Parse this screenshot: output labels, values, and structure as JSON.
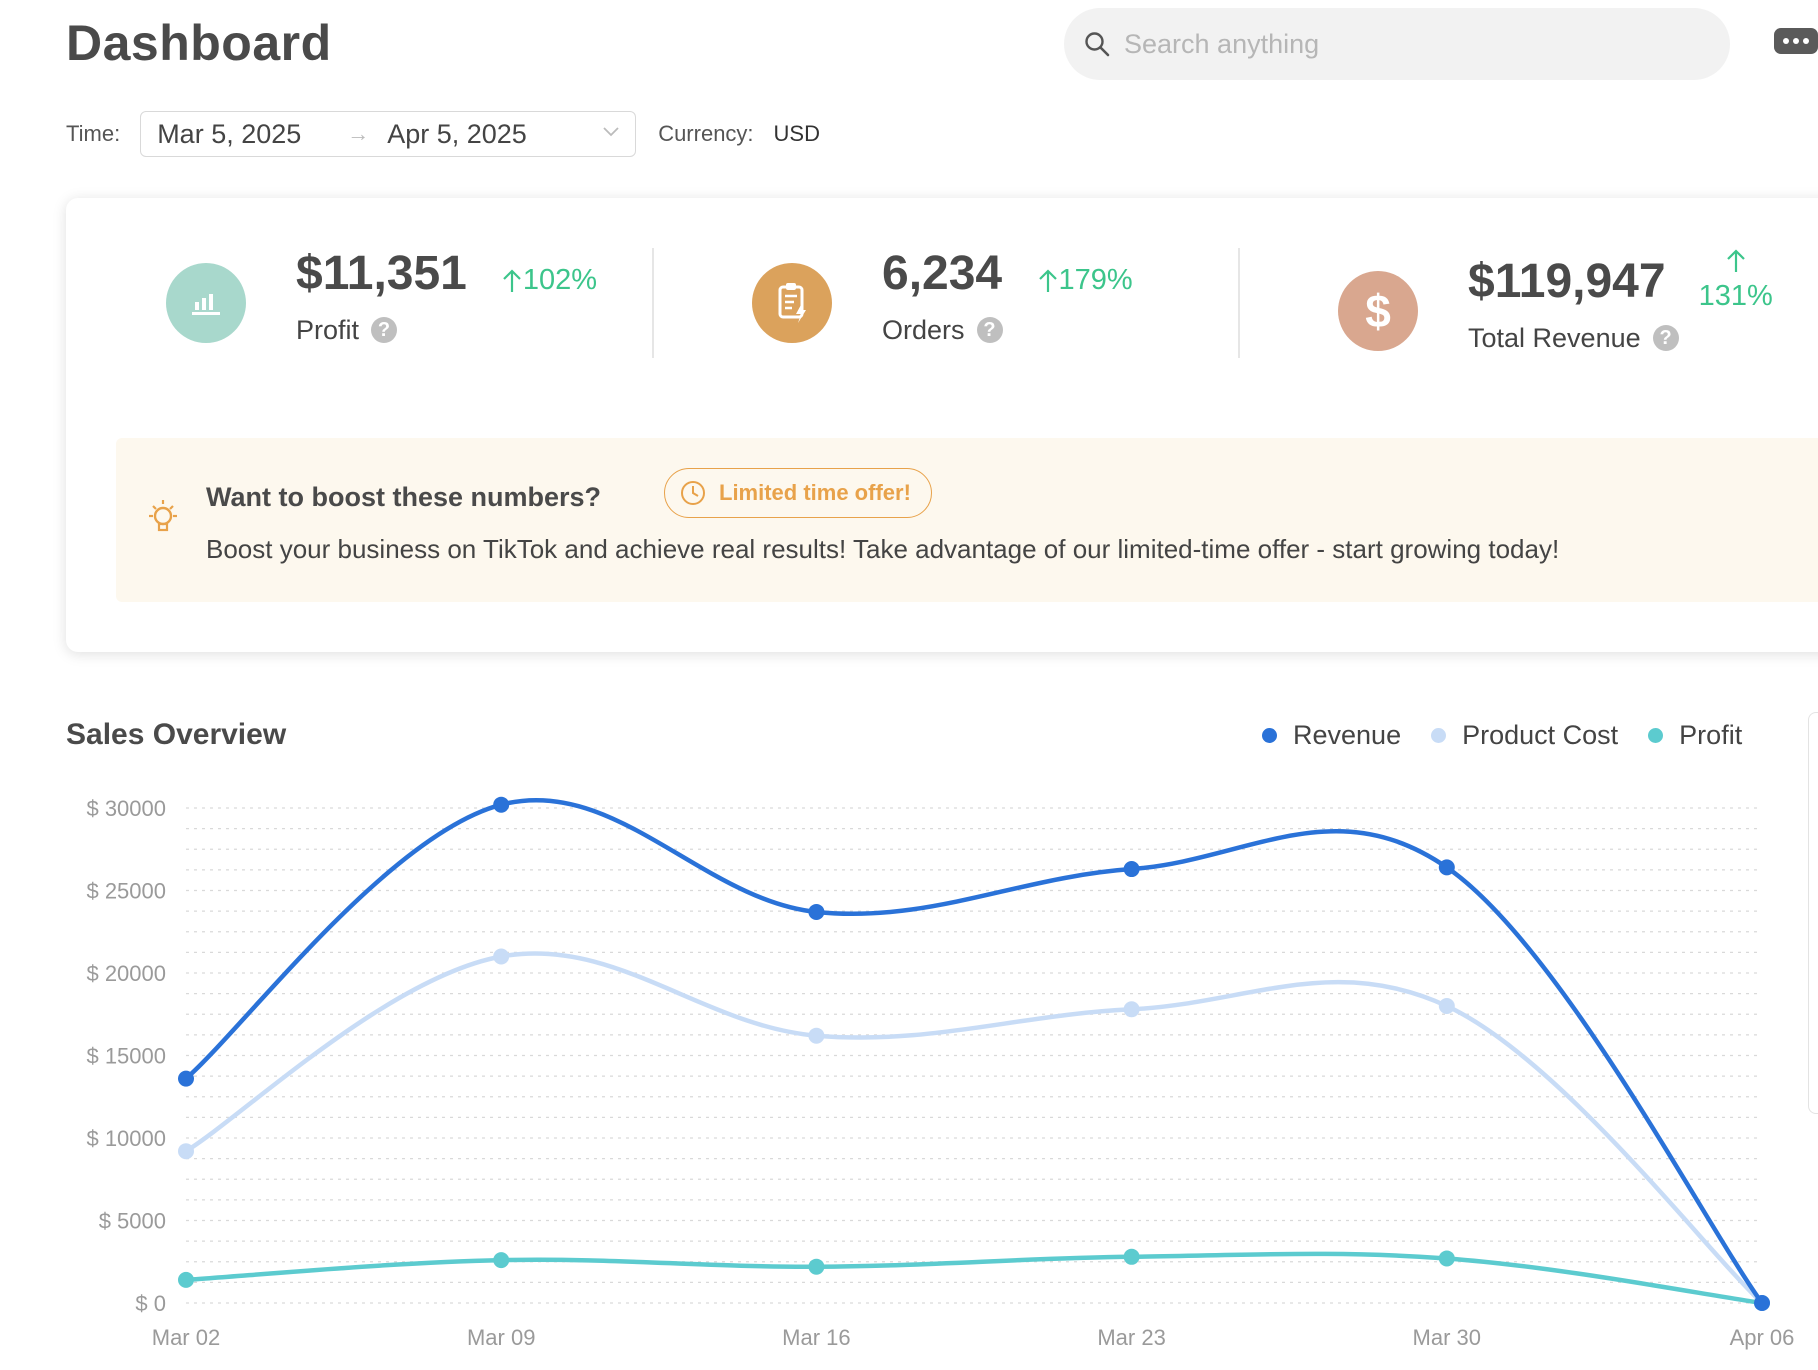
{
  "header": {
    "title": "Dashboard",
    "search_placeholder": "Search anything"
  },
  "filters": {
    "time_label": "Time:",
    "start_date": "Mar 5, 2025",
    "end_date": "Apr 5, 2025",
    "currency_label": "Currency:",
    "currency_value": "USD"
  },
  "kpis": [
    {
      "value": "$11,351",
      "label": "Profit",
      "delta": "102%",
      "icon": "bar-chart-icon",
      "color": "#a8d8cc"
    },
    {
      "value": "6,234",
      "label": "Orders",
      "delta": "179%",
      "icon": "order-icon",
      "color": "#dba25c"
    },
    {
      "value": "$119,947",
      "label": "Total Revenue",
      "delta": "131%",
      "icon": "dollar-icon",
      "color": "#d9a78f"
    }
  ],
  "promo": {
    "title": "Want to boost these numbers?",
    "badge": "Limited time offer!",
    "message": "Boost your business on TikTok and achieve real results! Take advantage of our limited-time offer - start growing today!"
  },
  "sales": {
    "title": "Sales Overview",
    "legend": [
      {
        "name": "Revenue",
        "color": "#2a72d8"
      },
      {
        "name": "Product Cost",
        "color": "#c8dcf6"
      },
      {
        "name": "Profit",
        "color": "#5ccbcf"
      }
    ]
  },
  "chart_data": {
    "type": "line",
    "title": "Sales Overview",
    "x": [
      "Mar 02",
      "Mar 09",
      "Mar 16",
      "Mar 23",
      "Mar 30",
      "Apr 06"
    ],
    "y_ticks": [
      "$ 0",
      "$ 5000",
      "$ 10000",
      "$ 15000",
      "$ 20000",
      "$ 25000",
      "$ 30000"
    ],
    "ylim": [
      0,
      30000
    ],
    "grid": true,
    "legend_position": "top-right",
    "series": [
      {
        "name": "Revenue",
        "color": "#2a72d8",
        "values": [
          13600,
          30200,
          23700,
          26300,
          26400,
          0
        ]
      },
      {
        "name": "Product Cost",
        "color": "#c8dcf6",
        "values": [
          9200,
          21000,
          16200,
          17800,
          18000,
          0
        ]
      },
      {
        "name": "Profit",
        "color": "#5ccbcf",
        "values": [
          1400,
          2600,
          2200,
          2800,
          2700,
          0
        ]
      }
    ]
  }
}
